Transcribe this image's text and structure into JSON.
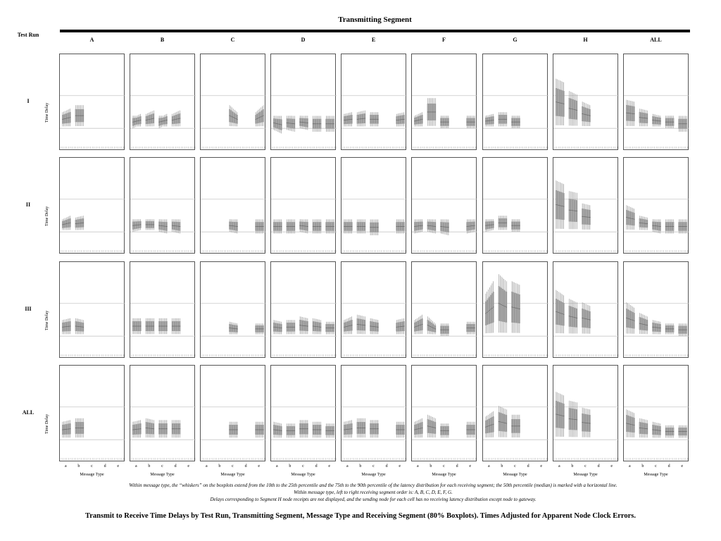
{
  "figure": {
    "header_title": "Transmitting Segment",
    "corner_label": "Test Run",
    "notes": [
      "Within message type, the “whiskers” on the boxplots extend from the 10th to the 25th percentile and the 75th to the 90th percentile of the latency distribution for each receiving segment; the 50th percentile (median) is marked with a horizontal line.",
      "Within message type, left to right receiving segment order is: A, B, C, D, E, F, G.",
      "Delays corresponding to Segment H node receipts are not displayed, and the sending node for each cell has no receiving latency distribution except node to gateway."
    ],
    "title": "Transmit to Receive Time Delays by Test Run, Transmitting Segment, Message Type and Receiving Segment (80% Boxplots). Times Adjusted for Apparent Node Clock Errors."
  },
  "colors": {
    "box": "#9a9a9a",
    "whisker": "#8a8a8a",
    "median": "#555555",
    "ref_line": "#c8c8c8",
    "frame": "#555555"
  },
  "chart_data": {
    "type": "boxplot-grid",
    "columns": [
      "A",
      "B",
      "C",
      "D",
      "E",
      "F",
      "G",
      "H",
      "ALL"
    ],
    "rows": [
      "I",
      "II",
      "III",
      "ALL"
    ],
    "ylabel": "Time Delay",
    "xlabel": "Message Type",
    "message_types": [
      "a",
      "b",
      "c",
      "d",
      "e"
    ],
    "receiving_segments": [
      "A",
      "B",
      "C",
      "D",
      "E",
      "F",
      "G"
    ],
    "y_range": [
      0,
      1
    ],
    "reference_lines": [
      0.56,
      0.2
    ],
    "cells": [
      [
        {
          "groups": [
            [
              0.3,
              0.32
            ],
            [
              0.34,
              0.34
            ],
            [
              null,
              null
            ],
            [
              null,
              null
            ],
            [
              null,
              null
            ]
          ]
        },
        {
          "groups": [
            [
              0.27,
              0.29
            ],
            [
              0.29,
              0.31
            ],
            [
              0.27,
              0.29
            ],
            [
              0.29,
              0.31
            ],
            [
              null,
              null
            ]
          ]
        },
        {
          "groups": [
            [
              null,
              null
            ],
            [
              null,
              null
            ],
            [
              0.34,
              0.3
            ],
            [
              null,
              null
            ],
            [
              0.3,
              0.34
            ]
          ]
        },
        {
          "groups": [
            [
              0.26,
              0.24
            ],
            [
              0.26,
              0.25
            ],
            [
              0.27,
              0.26
            ],
            [
              0.25,
              0.25
            ],
            [
              0.25,
              0.25
            ]
          ]
        },
        {
          "groups": [
            [
              0.29,
              0.3
            ],
            [
              0.3,
              0.31
            ],
            [
              0.3,
              0.3
            ],
            [
              null,
              null
            ],
            [
              0.29,
              0.3
            ]
          ]
        },
        {
          "groups": [
            [
              0.28,
              0.3
            ],
            [
              0.38,
              0.38
            ],
            [
              0.27,
              0.27
            ],
            [
              null,
              null
            ],
            [
              0.27,
              0.27
            ]
          ]
        },
        {
          "groups": [
            [
              0.28,
              0.29
            ],
            [
              0.3,
              0.3
            ],
            [
              0.27,
              0.27
            ],
            [
              null,
              null
            ],
            [
              null,
              null
            ]
          ]
        },
        {
          "groups": [
            [
              0.49,
              0.47
            ],
            [
              0.42,
              0.4
            ],
            [
              0.36,
              0.34
            ],
            [
              null,
              null
            ],
            [
              null,
              null
            ]
          ]
        },
        {
          "groups": [
            [
              0.37,
              0.36
            ],
            [
              0.32,
              0.31
            ],
            [
              0.29,
              0.28
            ],
            [
              0.27,
              0.27
            ],
            [
              0.25,
              0.25
            ]
          ]
        }
      ],
      [
        {
          "groups": [
            [
              0.28,
              0.3
            ],
            [
              0.29,
              0.3
            ],
            [
              null,
              null
            ],
            [
              null,
              null
            ],
            [
              null,
              null
            ]
          ]
        },
        {
          "groups": [
            [
              0.27,
              0.28
            ],
            [
              0.28,
              0.28
            ],
            [
              0.27,
              0.26
            ],
            [
              0.27,
              0.26
            ],
            [
              null,
              null
            ]
          ]
        },
        {
          "groups": [
            [
              null,
              null
            ],
            [
              null,
              null
            ],
            [
              0.27,
              0.26
            ],
            [
              null,
              null
            ],
            [
              0.26,
              0.26
            ]
          ]
        },
        {
          "groups": [
            [
              0.26,
              0.26
            ],
            [
              0.26,
              0.26
            ],
            [
              0.27,
              0.26
            ],
            [
              0.26,
              0.26
            ],
            [
              0.26,
              0.26
            ]
          ]
        },
        {
          "groups": [
            [
              0.26,
              0.26
            ],
            [
              0.26,
              0.26
            ],
            [
              0.25,
              0.25
            ],
            [
              null,
              null
            ],
            [
              0.26,
              0.26
            ]
          ]
        },
        {
          "groups": [
            [
              0.26,
              0.27
            ],
            [
              0.27,
              0.26
            ],
            [
              0.26,
              0.25
            ],
            [
              null,
              null
            ],
            [
              0.26,
              0.27
            ]
          ]
        },
        {
          "groups": [
            [
              0.27,
              0.28
            ],
            [
              0.3,
              0.3
            ],
            [
              0.27,
              0.27
            ],
            [
              null,
              null
            ],
            [
              null,
              null
            ]
          ]
        },
        {
          "groups": [
            [
              0.5,
              0.48
            ],
            [
              0.44,
              0.43
            ],
            [
              0.37,
              0.36
            ],
            [
              null,
              null
            ],
            [
              null,
              null
            ]
          ]
        },
        {
          "groups": [
            [
              0.36,
              0.34
            ],
            [
              0.3,
              0.29
            ],
            [
              0.27,
              0.26
            ],
            [
              0.26,
              0.26
            ],
            [
              0.26,
              0.26
            ]
          ]
        }
      ],
      [
        {
          "groups": [
            [
              0.3,
              0.31
            ],
            [
              0.31,
              0.3
            ],
            [
              null,
              null
            ],
            [
              null,
              null
            ],
            [
              null,
              null
            ]
          ]
        },
        {
          "groups": [
            [
              0.31,
              0.31
            ],
            [
              0.31,
              0.31
            ],
            [
              0.31,
              0.31
            ],
            [
              0.31,
              0.31
            ],
            [
              null,
              null
            ]
          ]
        },
        {
          "groups": [
            [
              null,
              null
            ],
            [
              null,
              null
            ],
            [
              0.29,
              0.28
            ],
            [
              null,
              null
            ],
            [
              0.28,
              0.28
            ]
          ]
        },
        {
          "groups": [
            [
              0.3,
              0.29
            ],
            [
              0.3,
              0.3
            ],
            [
              0.32,
              0.31
            ],
            [
              0.31,
              0.3
            ],
            [
              0.29,
              0.29
            ]
          ]
        },
        {
          "groups": [
            [
              0.3,
              0.32
            ],
            [
              0.33,
              0.32
            ],
            [
              0.31,
              0.3
            ],
            [
              null,
              null
            ],
            [
              0.3,
              0.31
            ]
          ]
        },
        {
          "groups": [
            [
              0.3,
              0.33
            ],
            [
              0.32,
              0.28
            ],
            [
              0.27,
              0.27
            ],
            [
              null,
              null
            ],
            [
              0.29,
              0.29
            ]
          ]
        },
        {
          "groups": [
            [
              0.45,
              0.52
            ],
            [
              0.56,
              0.52
            ],
            [
              0.52,
              0.5
            ],
            [
              null,
              null
            ],
            [
              null,
              null
            ]
          ]
        },
        {
          "groups": [
            [
              0.47,
              0.44
            ],
            [
              0.42,
              0.4
            ],
            [
              0.4,
              0.38
            ],
            [
              null,
              null
            ],
            [
              null,
              null
            ]
          ]
        },
        {
          "groups": [
            [
              0.4,
              0.37
            ],
            [
              0.34,
              0.32
            ],
            [
              0.3,
              0.29
            ],
            [
              0.28,
              0.28
            ],
            [
              0.27,
              0.27
            ]
          ]
        }
      ],
      [
        {
          "groups": [
            [
              0.31,
              0.32
            ],
            [
              0.33,
              0.33
            ],
            [
              null,
              null
            ],
            [
              null,
              null
            ],
            [
              null,
              null
            ]
          ]
        },
        {
          "groups": [
            [
              0.31,
              0.32
            ],
            [
              0.33,
              0.32
            ],
            [
              0.32,
              0.32
            ],
            [
              0.32,
              0.32
            ],
            [
              null,
              null
            ]
          ]
        },
        {
          "groups": [
            [
              null,
              null
            ],
            [
              null,
              null
            ],
            [
              0.31,
              0.31
            ],
            [
              null,
              null
            ],
            [
              0.31,
              0.31
            ]
          ]
        },
        {
          "groups": [
            [
              0.31,
              0.3
            ],
            [
              0.3,
              0.3
            ],
            [
              0.32,
              0.32
            ],
            [
              0.31,
              0.31
            ],
            [
              0.3,
              0.3
            ]
          ]
        },
        {
          "groups": [
            [
              0.31,
              0.32
            ],
            [
              0.33,
              0.33
            ],
            [
              0.32,
              0.32
            ],
            [
              null,
              null
            ],
            [
              0.31,
              0.31
            ]
          ]
        },
        {
          "groups": [
            [
              0.31,
              0.33
            ],
            [
              0.35,
              0.33
            ],
            [
              0.3,
              0.3
            ],
            [
              null,
              null
            ],
            [
              0.31,
              0.31
            ]
          ]
        },
        {
          "groups": [
            [
              0.34,
              0.37
            ],
            [
              0.4,
              0.38
            ],
            [
              0.35,
              0.35
            ],
            [
              null,
              null
            ],
            [
              null,
              null
            ]
          ]
        },
        {
          "groups": [
            [
              0.48,
              0.46
            ],
            [
              0.43,
              0.42
            ],
            [
              0.39,
              0.38
            ],
            [
              null,
              null
            ],
            [
              null,
              null
            ]
          ]
        },
        {
          "groups": [
            [
              0.38,
              0.36
            ],
            [
              0.33,
              0.32
            ],
            [
              0.31,
              0.3
            ],
            [
              0.29,
              0.29
            ],
            [
              0.29,
              0.29
            ]
          ]
        }
      ]
    ]
  }
}
